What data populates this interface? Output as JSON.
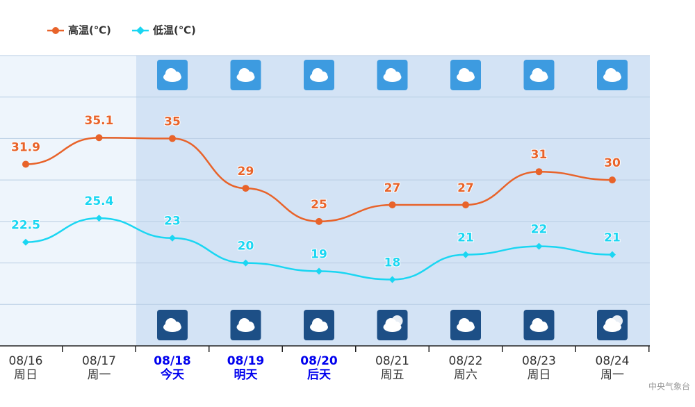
{
  "chart_data": {
    "type": "line",
    "categories": [
      "08/16",
      "08/17",
      "08/18",
      "08/19",
      "08/20",
      "08/21",
      "08/22",
      "08/23",
      "08/24"
    ],
    "weekdays": [
      "周日",
      "周一",
      "今天",
      "明天",
      "后天",
      "周五",
      "周六",
      "周日",
      "周一"
    ],
    "label_colors": [
      "#333333",
      "#333333",
      "#0000ee",
      "#0000ee",
      "#0000ee",
      "#333333",
      "#333333",
      "#333333",
      "#333333"
    ],
    "series": [
      {
        "name": "高温(℃)",
        "color": "#e8632a",
        "values": [
          31.9,
          35.1,
          35,
          29,
          25,
          27,
          27,
          31,
          30
        ]
      },
      {
        "name": "低温(℃)",
        "color": "#1ad6f2",
        "values": [
          22.5,
          25.4,
          23,
          20,
          19,
          18,
          21,
          22,
          21
        ]
      }
    ],
    "ylim": [
      10,
      45
    ],
    "yticks": [
      10,
      15,
      20,
      25,
      30,
      35,
      40,
      45
    ],
    "grid": true,
    "source": "中央气象台"
  }
}
